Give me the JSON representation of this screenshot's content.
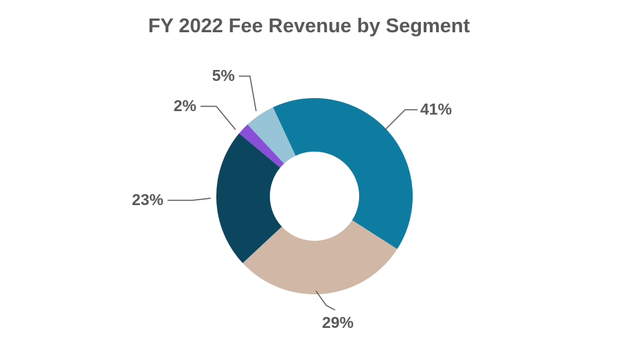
{
  "chart_data": {
    "type": "pie",
    "donut": true,
    "title": "FY 2022 Fee Revenue by Segment",
    "values": [
      41,
      29,
      23,
      2,
      5
    ],
    "labels": [
      "41%",
      "29%",
      "23%",
      "2%",
      "5%"
    ],
    "colors": [
      "#0E7BA1",
      "#D1B8A6",
      "#0B465E",
      "#8A4FD8",
      "#97C4D6"
    ],
    "legend": "none"
  }
}
